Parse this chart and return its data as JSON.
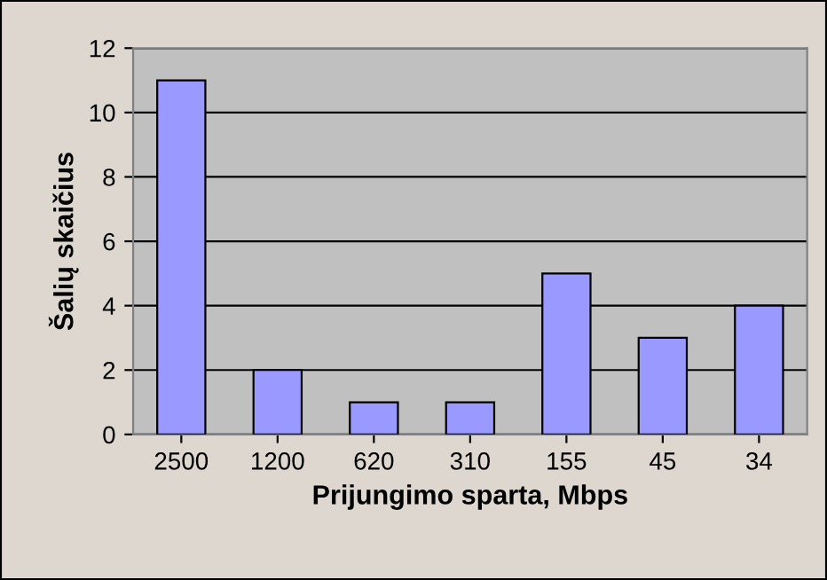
{
  "chart_data": {
    "type": "bar",
    "xlabel": "Prijungimo sparta, Mbps",
    "ylabel": "Šalių skaičius",
    "categories": [
      "2500",
      "1200",
      "620",
      "310",
      "155",
      "45",
      "34"
    ],
    "values": [
      11,
      2,
      1,
      1,
      5,
      3,
      4
    ],
    "color": "#9999ff",
    "ylim": [
      0,
      12
    ],
    "yticks": [
      0,
      2,
      4,
      6,
      8,
      10,
      12
    ],
    "grid": "y",
    "legend": false
  }
}
